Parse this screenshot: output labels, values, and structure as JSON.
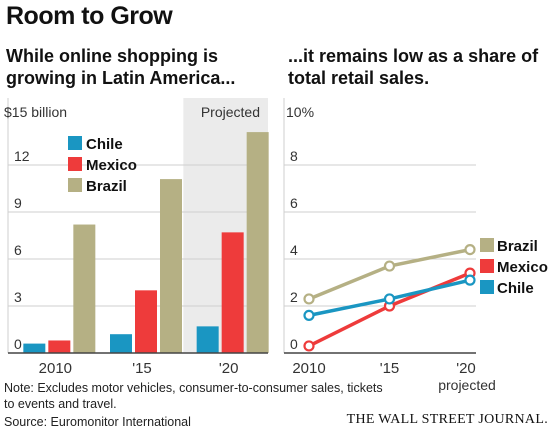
{
  "title": "Room to Grow",
  "subtitle_left": "While online shopping is growing in Latin America...",
  "subtitle_right": "...it remains low as a share of total retail sales.",
  "note_line1": "Note: Excludes motor vehicles, consumer-to-consumer sales, tickets",
  "note_line2": "to events and travel.",
  "source": "Source: Euromonitor International",
  "publisher": "THE WALL STREET JOURNAL.",
  "colors": {
    "chile": "#1a96c2",
    "mexico": "#ee3b3b",
    "brazil": "#b5b084",
    "projected_bg": "#ebebeb"
  },
  "chart_data": [
    {
      "type": "bar",
      "ylabel": "$15 billion",
      "ylim": [
        0,
        15
      ],
      "yticks": [
        0,
        3,
        6,
        9,
        12
      ],
      "categories": [
        "2010",
        "'15",
        "'20"
      ],
      "projected_label": "Projected",
      "projected_categories": [
        "'20"
      ],
      "legend_position": "top-left",
      "series": [
        {
          "name": "Chile",
          "values": [
            0.6,
            1.2,
            1.7
          ]
        },
        {
          "name": "Mexico",
          "values": [
            0.8,
            4.0,
            7.7
          ]
        },
        {
          "name": "Brazil",
          "values": [
            8.2,
            11.1,
            14.1
          ]
        }
      ]
    },
    {
      "type": "line",
      "ylabel": "10%",
      "ylim": [
        0,
        10
      ],
      "yticks": [
        0,
        2,
        4,
        6,
        8
      ],
      "x": [
        "2010",
        "'15",
        "'20"
      ],
      "x_note": "projected",
      "legend_position": "right",
      "series": [
        {
          "name": "Brazil",
          "values": [
            2.3,
            3.7,
            4.4
          ]
        },
        {
          "name": "Mexico",
          "values": [
            0.3,
            2.0,
            3.4
          ]
        },
        {
          "name": "Chile",
          "values": [
            1.6,
            2.3,
            3.1
          ]
        }
      ]
    }
  ]
}
